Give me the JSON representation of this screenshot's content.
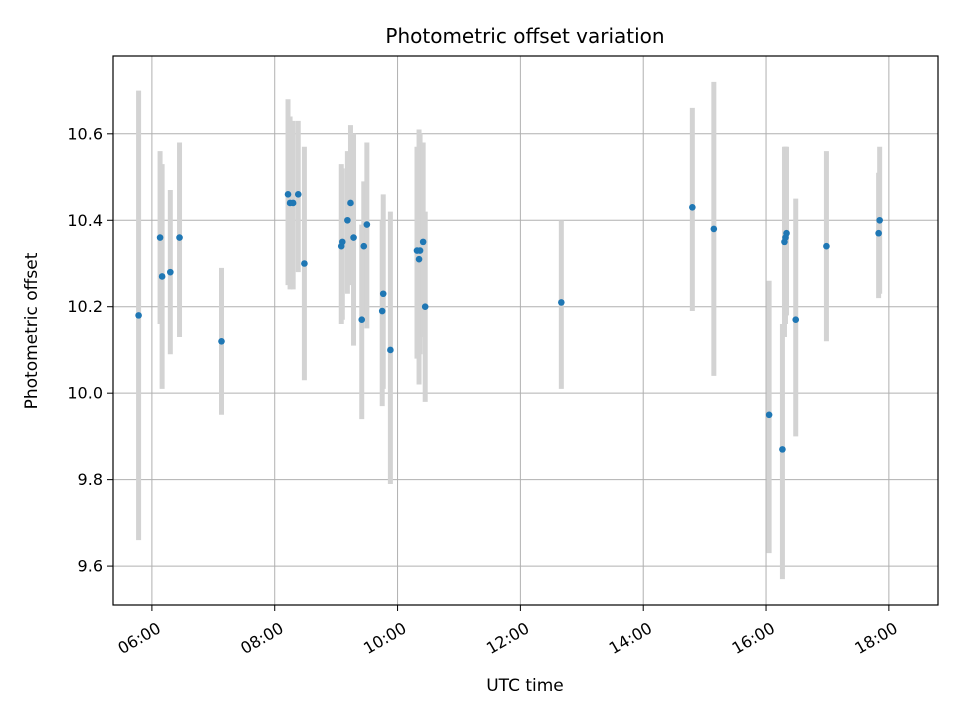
{
  "chart_data": {
    "type": "scatter",
    "title": "Photometric offset variation",
    "xlabel": "UTC time",
    "ylabel": "Photometric offset",
    "x_unit": "hour",
    "xlim": [
      "05:22",
      "18:48"
    ],
    "ylim": [
      9.51,
      10.78
    ],
    "x_ticks": [
      "06:00",
      "08:00",
      "10:00",
      "12:00",
      "14:00",
      "16:00",
      "18:00"
    ],
    "y_ticks": [
      "9.6",
      "9.8",
      "10.0",
      "10.2",
      "10.4",
      "10.6"
    ],
    "grid": true,
    "legend": "none",
    "colors": {
      "point": "#1f77b4",
      "errorbar": "#d3d3d3",
      "grid": "#b0b0b0",
      "axes": "#000000"
    },
    "series": [
      {
        "points": [
          {
            "t": "05:47",
            "y": 10.18,
            "lo": 9.66,
            "hi": 10.7
          },
          {
            "t": "06:08",
            "y": 10.36,
            "lo": 10.16,
            "hi": 10.56
          },
          {
            "t": "06:10",
            "y": 10.27,
            "lo": 10.01,
            "hi": 10.53
          },
          {
            "t": "06:18",
            "y": 10.28,
            "lo": 10.09,
            "hi": 10.47
          },
          {
            "t": "06:27",
            "y": 10.36,
            "lo": 10.13,
            "hi": 10.58
          },
          {
            "t": "07:08",
            "y": 10.12,
            "lo": 9.95,
            "hi": 10.29
          },
          {
            "t": "08:13",
            "y": 10.46,
            "lo": 10.25,
            "hi": 10.68
          },
          {
            "t": "08:15",
            "y": 10.44,
            "lo": 10.24,
            "hi": 10.64
          },
          {
            "t": "08:18",
            "y": 10.44,
            "lo": 10.24,
            "hi": 10.63
          },
          {
            "t": "08:23",
            "y": 10.46,
            "lo": 10.28,
            "hi": 10.63
          },
          {
            "t": "08:29",
            "y": 10.3,
            "lo": 10.03,
            "hi": 10.57
          },
          {
            "t": "09:05",
            "y": 10.34,
            "lo": 10.16,
            "hi": 10.53
          },
          {
            "t": "09:06",
            "y": 10.35,
            "lo": 10.17,
            "hi": 10.52
          },
          {
            "t": "09:11",
            "y": 10.4,
            "lo": 10.23,
            "hi": 10.56
          },
          {
            "t": "09:14",
            "y": 10.44,
            "lo": 10.25,
            "hi": 10.62
          },
          {
            "t": "09:17",
            "y": 10.36,
            "lo": 10.11,
            "hi": 10.6
          },
          {
            "t": "09:25",
            "y": 10.17,
            "lo": 9.94,
            "hi": 10.39
          },
          {
            "t": "09:27",
            "y": 10.34,
            "lo": 10.18,
            "hi": 10.49
          },
          {
            "t": "09:30",
            "y": 10.39,
            "lo": 10.15,
            "hi": 10.58
          },
          {
            "t": "09:45",
            "y": 10.19,
            "lo": 9.97,
            "hi": 10.4
          },
          {
            "t": "09:46",
            "y": 10.23,
            "lo": 10.01,
            "hi": 10.46
          },
          {
            "t": "09:53",
            "y": 10.1,
            "lo": 9.79,
            "hi": 10.42
          },
          {
            "t": "10:19",
            "y": 10.33,
            "lo": 10.08,
            "hi": 10.57
          },
          {
            "t": "10:21",
            "y": 10.31,
            "lo": 10.02,
            "hi": 10.61
          },
          {
            "t": "10:22",
            "y": 10.33,
            "lo": 10.09,
            "hi": 10.6
          },
          {
            "t": "10:25",
            "y": 10.35,
            "lo": 10.13,
            "hi": 10.58
          },
          {
            "t": "10:27",
            "y": 10.2,
            "lo": 9.98,
            "hi": 10.42
          },
          {
            "t": "12:40",
            "y": 10.21,
            "lo": 10.01,
            "hi": 10.4
          },
          {
            "t": "14:48",
            "y": 10.43,
            "lo": 10.19,
            "hi": 10.66
          },
          {
            "t": "15:09",
            "y": 10.38,
            "lo": 10.04,
            "hi": 10.72
          },
          {
            "t": "16:03",
            "y": 9.95,
            "lo": 9.63,
            "hi": 10.26
          },
          {
            "t": "16:16",
            "y": 9.87,
            "lo": 9.57,
            "hi": 10.16
          },
          {
            "t": "16:18",
            "y": 10.35,
            "lo": 10.13,
            "hi": 10.57
          },
          {
            "t": "16:19",
            "y": 10.36,
            "lo": 10.16,
            "hi": 10.57
          },
          {
            "t": "16:20",
            "y": 10.37,
            "lo": 10.18,
            "hi": 10.57
          },
          {
            "t": "16:29",
            "y": 10.17,
            "lo": 9.9,
            "hi": 10.45
          },
          {
            "t": "16:59",
            "y": 10.34,
            "lo": 10.12,
            "hi": 10.56
          },
          {
            "t": "17:50",
            "y": 10.37,
            "lo": 10.22,
            "hi": 10.51
          },
          {
            "t": "17:51",
            "y": 10.4,
            "lo": 10.23,
            "hi": 10.57
          }
        ]
      }
    ]
  }
}
